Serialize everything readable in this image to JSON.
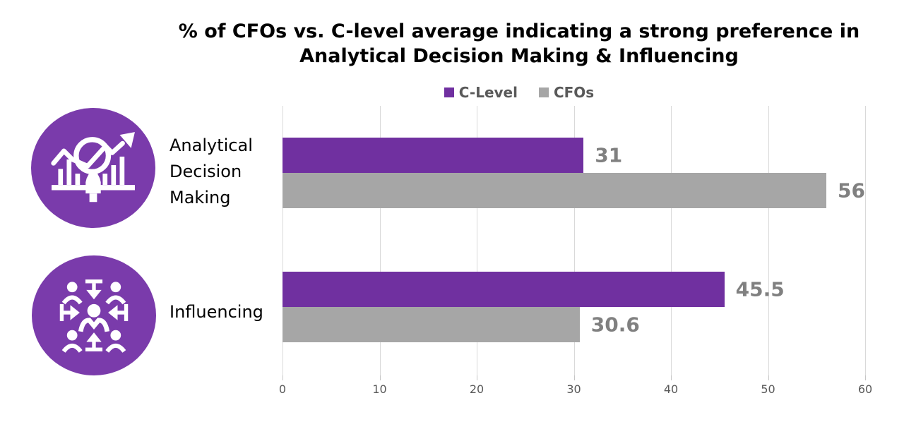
{
  "header": {
    "title_line1": "% of CFOs vs. C-level average indicating a strong preference in",
    "title_line2": "Analytical Decision Making & Influencing"
  },
  "chart_data": {
    "type": "bar",
    "orientation": "horizontal",
    "title": "% of CFOs vs. C-level average indicating a strong preference in Analytical Decision Making & Influencing",
    "categories": [
      "Analytical Decision Making",
      "Influencing"
    ],
    "series": [
      {
        "name": "C-Level",
        "color": "#7030A0",
        "values": [
          31,
          45.5
        ]
      },
      {
        "name": "CFOs",
        "color": "#A6A6A6",
        "values": [
          56,
          30.6
        ]
      }
    ],
    "xlim": [
      0,
      60
    ],
    "xticks": [
      0,
      10,
      20,
      30,
      40,
      50,
      60
    ],
    "grid": true,
    "legend_position": "top",
    "value_labels": [
      [
        "31",
        "56"
      ],
      [
        "45.5",
        "30.6"
      ]
    ]
  },
  "icons": [
    {
      "name": "analytics-magnifier-icon"
    },
    {
      "name": "influencing-people-icon"
    }
  ],
  "colors": {
    "bar_purple": "#7030A0",
    "bar_gray": "#A6A6A6",
    "icon_purple": "#7A3BAB",
    "gridline": "#D9D9D9",
    "tick_text": "#595959",
    "value_label_text": "#808080",
    "legend_text": "#595959",
    "title_text": "#000000"
  }
}
